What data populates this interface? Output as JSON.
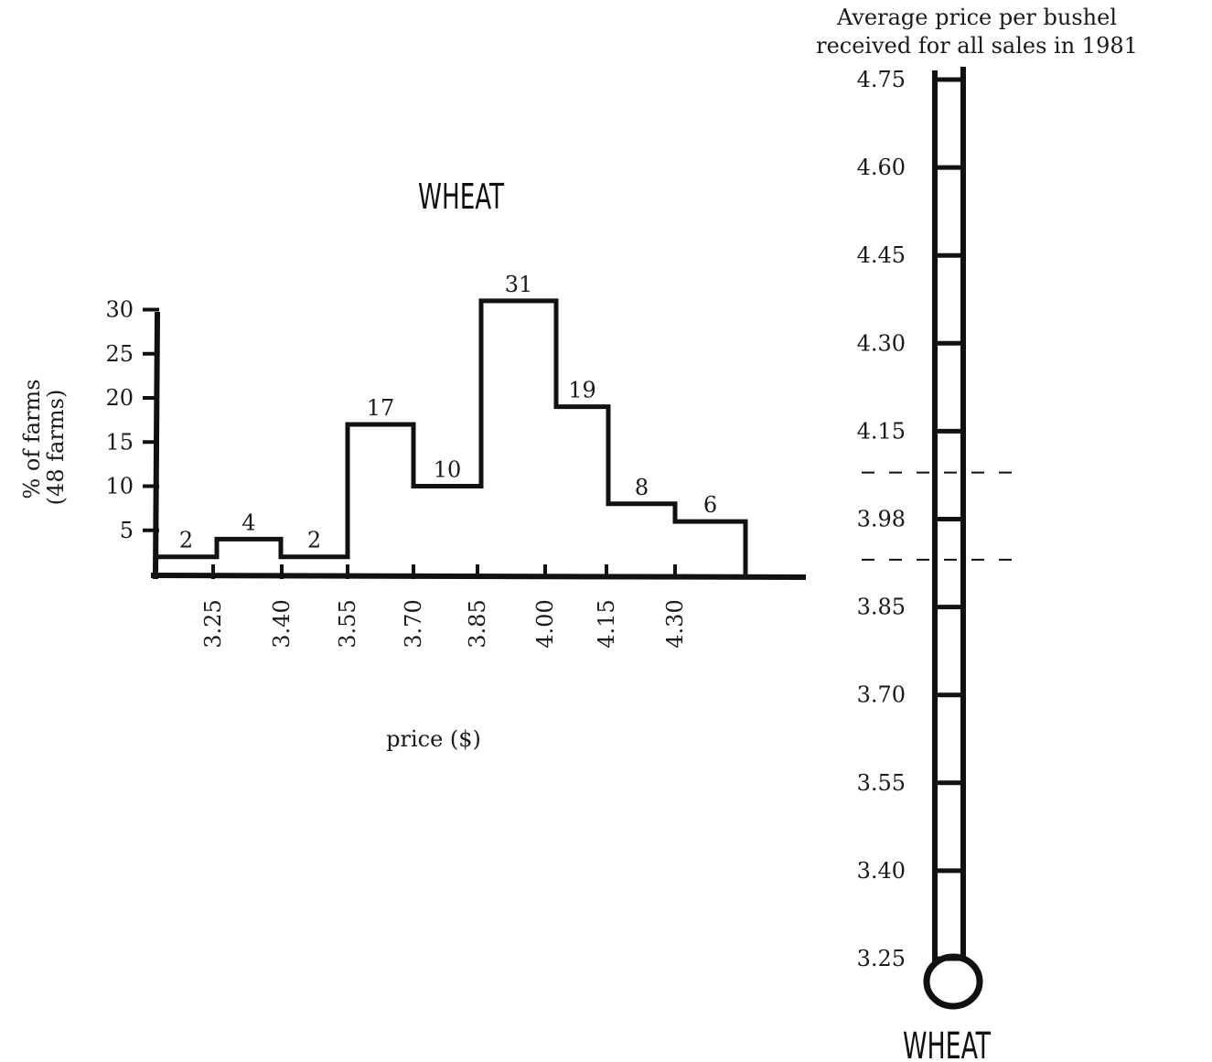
{
  "chart_data": [
    {
      "type": "bar",
      "subtype": "histogram",
      "title": "WHEAT",
      "xlabel": "price ($)",
      "ylabel": "% of farms\n(48 farms)",
      "ylabel_lines": [
        "% of farms",
        "(48 farms)"
      ],
      "y_ticks": [
        "5",
        "10",
        "15",
        "20",
        "25",
        "30"
      ],
      "ylim": [
        0,
        30
      ],
      "x_tick_labels": [
        "3.25",
        "3.40",
        "3.55",
        "3.70",
        "3.85",
        "4.00",
        "4.15",
        "4.30"
      ],
      "values": [
        2,
        4,
        2,
        17,
        10,
        31,
        19,
        8,
        6
      ],
      "value_labels": [
        "2",
        "4",
        "2",
        "17",
        "10",
        "31",
        "19",
        "8",
        "6"
      ],
      "grid": false,
      "legend": "none"
    },
    {
      "type": "thermometer",
      "title": "Average price per bushel\nreceived for all sales in 1981",
      "title_lines": [
        "Average price per bushel",
        "received for all sales in 1981"
      ],
      "scale_labels": [
        "4.75",
        "4.60",
        "4.45",
        "4.30",
        "4.15",
        "3.98",
        "3.85",
        "3.70",
        "3.55",
        "3.40",
        "3.25"
      ],
      "scale_values": [
        4.75,
        4.6,
        4.45,
        4.3,
        4.15,
        3.98,
        3.85,
        3.7,
        3.55,
        3.4,
        3.25
      ],
      "range_marked": [
        3.92,
        4.07
      ],
      "caption": "WHEAT"
    }
  ]
}
